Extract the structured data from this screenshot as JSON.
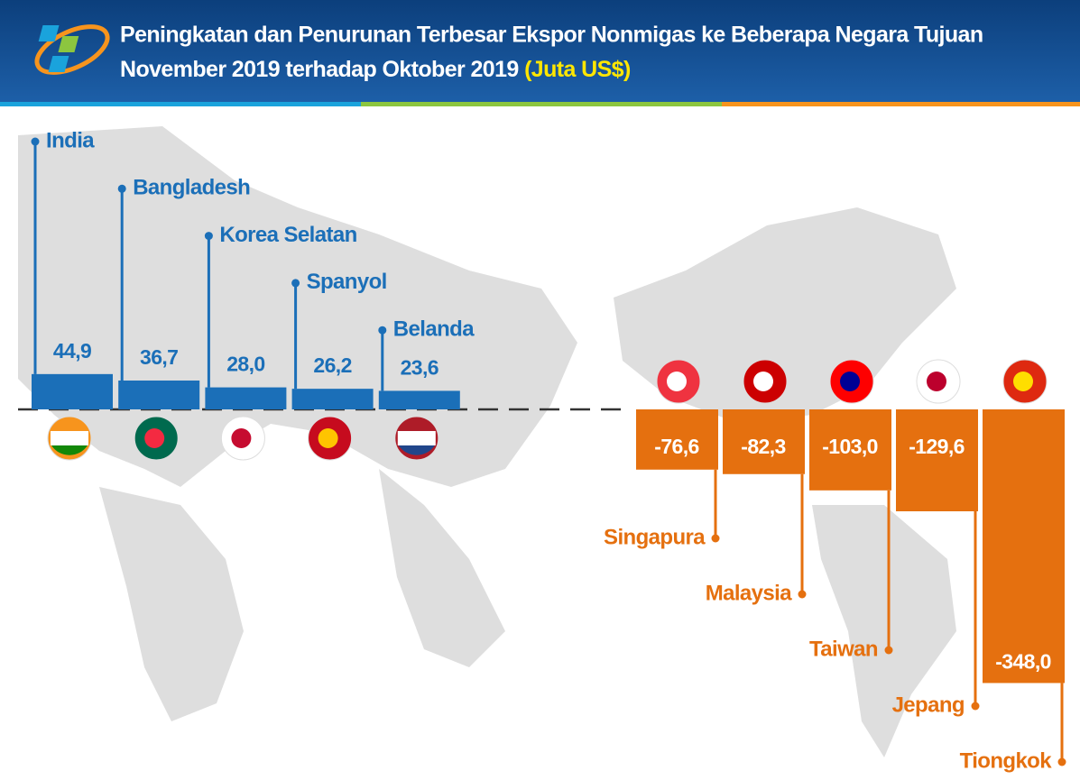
{
  "chart_data": {
    "type": "bar",
    "title": "Peningkatan dan Penurunan Terbesar Ekspor Nonmigas ke Beberapa Negara Tujuan",
    "subtitle": "November 2019 terhadap Oktober 2019",
    "unit": "(Juta US$)",
    "categories": [
      "India",
      "Bangladesh",
      "Korea Selatan",
      "Spanyol",
      "Belanda",
      "Singapura",
      "Malaysia",
      "Taiwan",
      "Jepang",
      "Tiongkok"
    ],
    "values": [
      44.9,
      36.7,
      28.0,
      26.2,
      23.6,
      -76.6,
      -82.3,
      -103.0,
      -129.6,
      -348.0
    ],
    "value_labels": [
      "44,9",
      "36,7",
      "28,0",
      "26,2",
      "23,6",
      "-76,6",
      "-82,3",
      "-103,0",
      "-129,6",
      "-348,0"
    ],
    "positive_color": "#1b6fb8",
    "negative_color": "#e5700f"
  }
}
